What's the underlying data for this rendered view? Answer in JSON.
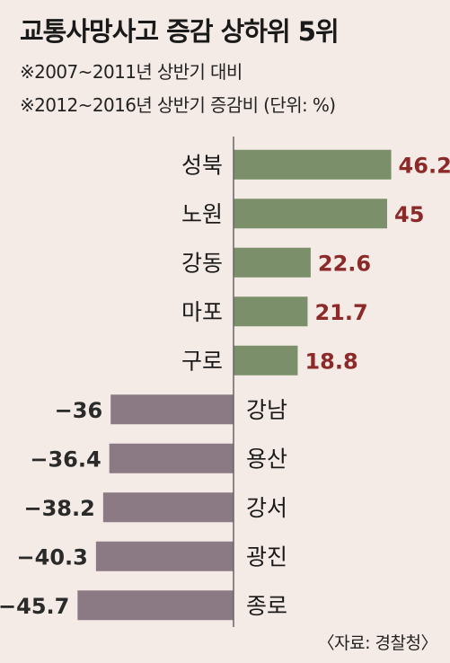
{
  "title": "교통사망사고 증감 상하위 5위",
  "notes": [
    "※2007~2011년 상반기 대비",
    "※2012~2016년 상반기 증감비 (단위: %)"
  ],
  "source": "〈자료: 경찰청〉",
  "colors": {
    "positive": "#7b8f6a",
    "negative": "#8b7a83",
    "axis": "#666666"
  },
  "chart_data": {
    "type": "bar",
    "orientation": "horizontal",
    "unit": "%",
    "categories": [
      "성북",
      "노원",
      "강동",
      "마포",
      "구로",
      "강남",
      "용산",
      "강서",
      "광진",
      "종로"
    ],
    "values": [
      46.2,
      45,
      22.6,
      21.7,
      18.8,
      -36,
      -36.4,
      -38.2,
      -40.3,
      -45.7
    ],
    "value_labels": [
      "46.2",
      "45",
      "22.6",
      "21.7",
      "18.8",
      "−36",
      "−36.4",
      "−38.2",
      "−40.3",
      "−45.7"
    ]
  }
}
